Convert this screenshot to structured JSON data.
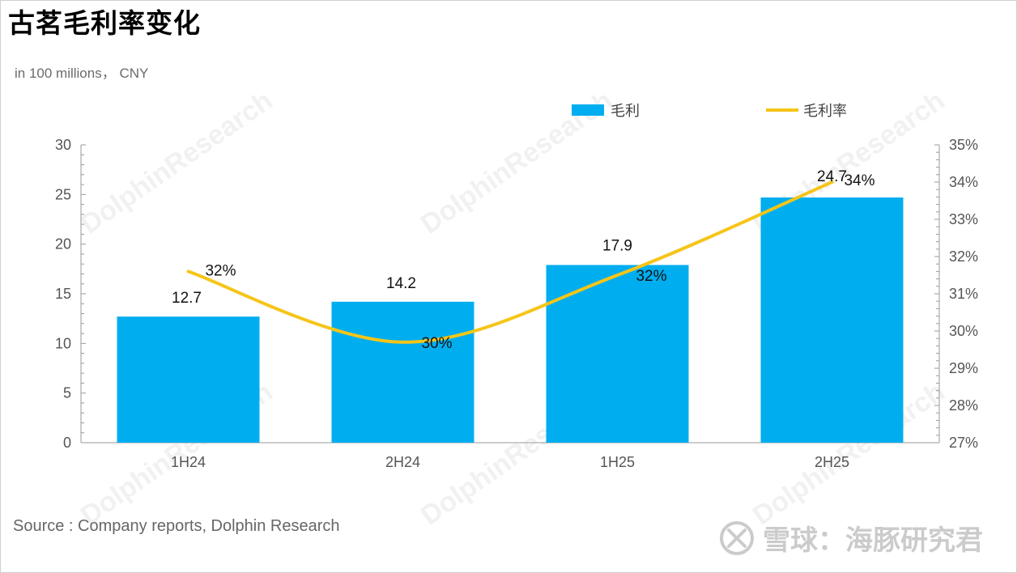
{
  "page": {
    "title": "古茗毛利率变化",
    "unit_note": "in 100 millions， CNY",
    "source": "Source : Company reports, Dolphin Research",
    "watermark": "DolphinResearch",
    "brand": "雪球：海豚研究君"
  },
  "chart_data": {
    "type": "bar",
    "categories": [
      "1H24",
      "2H24",
      "1H25",
      "2H25"
    ],
    "series": [
      {
        "name": "毛利",
        "type": "bar",
        "axis": "left",
        "values": [
          12.7,
          14.2,
          17.9,
          24.7
        ],
        "labels": [
          "12.7",
          "14.2",
          "17.9",
          "24.7"
        ]
      },
      {
        "name": "毛利率",
        "type": "line",
        "axis": "right",
        "values": [
          31.6,
          29.7,
          31.5,
          34.0
        ],
        "labels": [
          "32%",
          "30%",
          "32%",
          "34%"
        ]
      }
    ],
    "y_left": {
      "min": 0,
      "max": 30,
      "ticks": [
        "0",
        "5",
        "10",
        "15",
        "20",
        "25",
        "30"
      ]
    },
    "y_right": {
      "min": 27,
      "max": 35,
      "ticks": [
        "27%",
        "28%",
        "29%",
        "30%",
        "31%",
        "32%",
        "33%",
        "34%",
        "35%"
      ]
    },
    "legend": "top-right",
    "colors": {
      "bar": "#00AEEF",
      "line": "#F5C518",
      "axis": "#9a9a9a",
      "tick_text": "#555555"
    }
  }
}
